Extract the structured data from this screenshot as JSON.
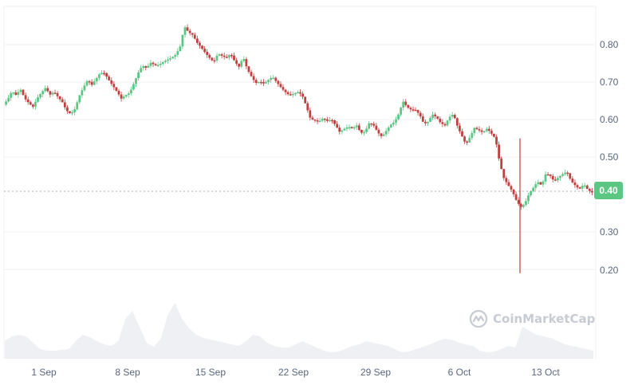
{
  "chart_data": {
    "type": "candlestick",
    "title": "",
    "source_watermark": "CoinMarketCap",
    "xlabel": "",
    "ylabel": "",
    "ylim": [
      0.15,
      0.88
    ],
    "grid": true,
    "y_ticks": [
      "0.80",
      "0.70",
      "0.60",
      "0.50",
      "0.40",
      "0.30",
      "0.20"
    ],
    "x_ticks": [
      "1 Sep",
      "8 Sep",
      "15 Sep",
      "22 Sep",
      "29 Sep",
      "6 Oct",
      "13 Oct"
    ],
    "current_price": "0.40",
    "current_price_color": "#5cc683",
    "up_color": "#5cc683",
    "down_color": "#c0403f",
    "volume_color": "#eef0f4",
    "price_path": [
      [
        0.64,
        0.65,
        0.67,
        0.66,
        0.68,
        0.66,
        0.65,
        0.64,
        0.66,
        0.67,
        0.68,
        0.66,
        0.67,
        0.66,
        0.65,
        0.63,
        0.62,
        0.63,
        0.66,
        0.68,
        0.7,
        0.69,
        0.71,
        0.73,
        0.73,
        0.71,
        0.69,
        0.67,
        0.65,
        0.66,
        0.67,
        0.7,
        0.73,
        0.75,
        0.74,
        0.75,
        0.74,
        0.74,
        0.75,
        0.76,
        0.77,
        0.78,
        0.8,
        0.85,
        0.83,
        0.82,
        0.8,
        0.79,
        0.78,
        0.77,
        0.76,
        0.78,
        0.77,
        0.76,
        0.77,
        0.75,
        0.74,
        0.77,
        0.74,
        0.72,
        0.7,
        0.7,
        0.69,
        0.7,
        0.71,
        0.7,
        0.69,
        0.68,
        0.67,
        0.67,
        0.67,
        0.66,
        0.63,
        0.6,
        0.6,
        0.6,
        0.61,
        0.6,
        0.6,
        0.58,
        0.56,
        0.57,
        0.58,
        0.58,
        0.59,
        0.57,
        0.57,
        0.59,
        0.58,
        0.56,
        0.55,
        0.57,
        0.59,
        0.6,
        0.62,
        0.65,
        0.63,
        0.62,
        0.62,
        0.61,
        0.59,
        0.6,
        0.62,
        0.61,
        0.59,
        0.58,
        0.6,
        0.61,
        0.58,
        0.56,
        0.54,
        0.56,
        0.58,
        0.57,
        0.56,
        0.57,
        0.56,
        0.55,
        0.49,
        0.45,
        0.43,
        0.41,
        0.38,
        0.36,
        0.37,
        0.4,
        0.42,
        0.44,
        0.43,
        0.46,
        0.45,
        0.43,
        0.44,
        0.45,
        0.46,
        0.44,
        0.43,
        0.42,
        0.43,
        0.41,
        0.4
      ]
    ],
    "spike_low": {
      "price": 0.19,
      "x_pos": 652
    },
    "volume_path": [
      22,
      28,
      30,
      28,
      20,
      12,
      10,
      10,
      11,
      12,
      22,
      30,
      27,
      22,
      18,
      16,
      22,
      50,
      60,
      40,
      20,
      15,
      25,
      55,
      70,
      50,
      38,
      30,
      26,
      24,
      22,
      20,
      18,
      16,
      22,
      30,
      28,
      20,
      16,
      14,
      14,
      18,
      22,
      18,
      14,
      10,
      8,
      9,
      12,
      16,
      18,
      22,
      20,
      18,
      16,
      12,
      8,
      9,
      12,
      15,
      18,
      22,
      25,
      24,
      20,
      18,
      16,
      10,
      8,
      9,
      12,
      16,
      14,
      40,
      35,
      30,
      28,
      26,
      22,
      18,
      16,
      14,
      12,
      10
    ]
  },
  "y_axis": {
    "labels": [
      "0.80",
      "0.70",
      "0.60",
      "0.50",
      "0.30",
      "0.20"
    ]
  },
  "x_axis": {
    "labels": [
      "1 Sep",
      "8 Sep",
      "15 Sep",
      "22 Sep",
      "29 Sep",
      "6 Oct",
      "13 Oct"
    ]
  },
  "price_badge": {
    "value": "0.40"
  },
  "watermark": {
    "text": "CoinMarketCap"
  }
}
